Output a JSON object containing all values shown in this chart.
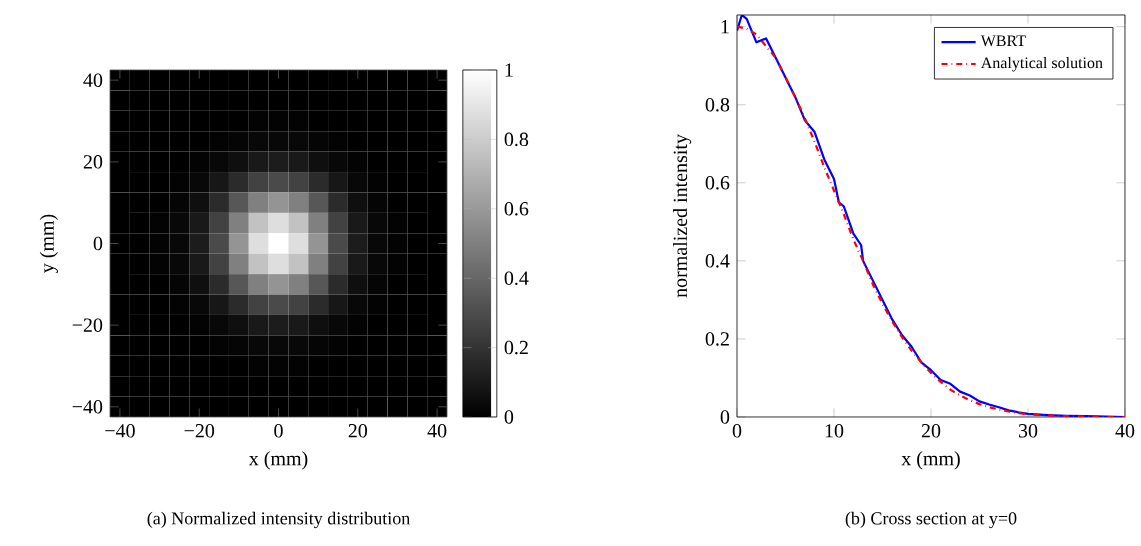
{
  "chart_data": [
    {
      "type": "heatmap",
      "xlabel": "x (mm)",
      "ylabel": "y (mm)",
      "categories": [
        "−40",
        null,
        null,
        null,
        "−20",
        null,
        null,
        null,
        "0",
        null,
        null,
        null,
        "20",
        null,
        null,
        null,
        "40"
      ],
      "y_categories": [
        "40",
        null,
        null,
        null,
        "20",
        null,
        null,
        null,
        "0",
        null,
        null,
        null,
        "−20",
        null,
        null,
        null,
        "−40"
      ],
      "clim": [
        0,
        1
      ],
      "cticks": [
        0,
        0.2,
        0.4,
        0.6,
        0.8,
        1
      ],
      "cells": [
        [
          0,
          0,
          0,
          0,
          0,
          0,
          0,
          0,
          0,
          0,
          0,
          0,
          0,
          0,
          0,
          0,
          0
        ],
        [
          0,
          0,
          0,
          0,
          0,
          0,
          0,
          0,
          0,
          0,
          0,
          0,
          0,
          0,
          0,
          0,
          0
        ],
        [
          0,
          0,
          0,
          0,
          0,
          0,
          0,
          0.01,
          0.01,
          0.01,
          0,
          0,
          0,
          0,
          0,
          0,
          0
        ],
        [
          0,
          0,
          0,
          0,
          0,
          0.01,
          0.02,
          0.03,
          0.03,
          0.03,
          0.02,
          0.01,
          0,
          0,
          0,
          0,
          0
        ],
        [
          0,
          0,
          0,
          0,
          0.01,
          0.03,
          0.06,
          0.1,
          0.11,
          0.1,
          0.06,
          0.03,
          0.01,
          0,
          0,
          0,
          0
        ],
        [
          0,
          0,
          0,
          0.01,
          0.03,
          0.09,
          0.17,
          0.26,
          0.29,
          0.26,
          0.17,
          0.09,
          0.03,
          0.01,
          0,
          0,
          0
        ],
        [
          0,
          0,
          0,
          0.02,
          0.06,
          0.17,
          0.34,
          0.5,
          0.58,
          0.5,
          0.34,
          0.17,
          0.06,
          0.02,
          0,
          0,
          0
        ],
        [
          0,
          0,
          0.01,
          0.03,
          0.1,
          0.26,
          0.5,
          0.76,
          0.87,
          0.76,
          0.5,
          0.26,
          0.1,
          0.03,
          0.01,
          0,
          0
        ],
        [
          0,
          0,
          0.01,
          0.03,
          0.11,
          0.29,
          0.58,
          0.87,
          1,
          0.87,
          0.58,
          0.29,
          0.11,
          0.03,
          0.01,
          0,
          0
        ],
        [
          0,
          0,
          0.01,
          0.03,
          0.1,
          0.26,
          0.5,
          0.76,
          0.87,
          0.76,
          0.5,
          0.26,
          0.1,
          0.03,
          0.01,
          0,
          0
        ],
        [
          0,
          0,
          0,
          0.02,
          0.06,
          0.17,
          0.34,
          0.5,
          0.58,
          0.5,
          0.34,
          0.17,
          0.06,
          0.02,
          0,
          0,
          0
        ],
        [
          0,
          0,
          0,
          0.01,
          0.03,
          0.09,
          0.17,
          0.26,
          0.29,
          0.26,
          0.17,
          0.09,
          0.03,
          0.01,
          0,
          0,
          0
        ],
        [
          0,
          0,
          0,
          0,
          0.01,
          0.03,
          0.06,
          0.1,
          0.11,
          0.1,
          0.06,
          0.03,
          0.01,
          0,
          0,
          0,
          0
        ],
        [
          0,
          0,
          0,
          0,
          0,
          0.01,
          0.02,
          0.03,
          0.03,
          0.03,
          0.02,
          0.01,
          0,
          0,
          0,
          0,
          0
        ],
        [
          0,
          0,
          0,
          0,
          0,
          0,
          0,
          0.01,
          0.01,
          0.01,
          0,
          0,
          0,
          0,
          0,
          0,
          0
        ],
        [
          0,
          0,
          0,
          0,
          0,
          0,
          0,
          0,
          0,
          0,
          0,
          0,
          0,
          0,
          0,
          0,
          0
        ],
        [
          0,
          0,
          0,
          0,
          0,
          0,
          0,
          0,
          0,
          0,
          0,
          0,
          0,
          0,
          0,
          0,
          0
        ]
      ],
      "annotations": [
        "(a) Normalized intensity distribution"
      ]
    },
    {
      "type": "line",
      "xlabel": "x (mm)",
      "ylabel": "normalized intensity",
      "xlim": [
        0,
        40
      ],
      "ylim": [
        0,
        1.03
      ],
      "xticks": [
        0,
        10,
        20,
        30,
        40
      ],
      "yticks": [
        0,
        0.2,
        0.4,
        0.6,
        0.8,
        1
      ],
      "legend": "top right",
      "series": [
        {
          "name": "WBRT",
          "color": "#0000ff",
          "line_style": "solid",
          "x": [
            0,
            0.5,
            1,
            2,
            3,
            4,
            5,
            6,
            7,
            8,
            9,
            10,
            10.5,
            11,
            12,
            12.8,
            13,
            14,
            15,
            16,
            17,
            18,
            19,
            20,
            21,
            22,
            23,
            24,
            25,
            26,
            27,
            28,
            29,
            30,
            32,
            34,
            36,
            38,
            40
          ],
          "values": [
            0.99,
            1.03,
            1.02,
            0.96,
            0.97,
            0.92,
            0.87,
            0.82,
            0.76,
            0.73,
            0.66,
            0.61,
            0.55,
            0.54,
            0.47,
            0.44,
            0.4,
            0.35,
            0.3,
            0.25,
            0.21,
            0.18,
            0.14,
            0.12,
            0.095,
            0.085,
            0.065,
            0.055,
            0.04,
            0.032,
            0.025,
            0.017,
            0.012,
            0.008,
            0.005,
            0.003,
            0.002,
            0.001,
            0
          ]
        },
        {
          "name": "Analytical solution",
          "color": "#ff0000",
          "line_style": "dashdot",
          "x": [
            0,
            1,
            2,
            3,
            4,
            5,
            6,
            7,
            8,
            9,
            10,
            11,
            12,
            13,
            14,
            15,
            16,
            17,
            18,
            19,
            20,
            21,
            22,
            23,
            24,
            25,
            26,
            27,
            28,
            29,
            30,
            32,
            34,
            36,
            38,
            40
          ],
          "values": [
            1,
            0.995,
            0.98,
            0.95,
            0.92,
            0.87,
            0.82,
            0.765,
            0.705,
            0.64,
            0.58,
            0.52,
            0.455,
            0.4,
            0.34,
            0.29,
            0.245,
            0.205,
            0.17,
            0.14,
            0.113,
            0.09,
            0.07,
            0.055,
            0.043,
            0.033,
            0.025,
            0.019,
            0.014,
            0.01,
            0.007,
            0.004,
            0.002,
            0.001,
            0,
            0
          ]
        }
      ],
      "annotations": [
        "(b) Cross section at y=0"
      ]
    }
  ]
}
